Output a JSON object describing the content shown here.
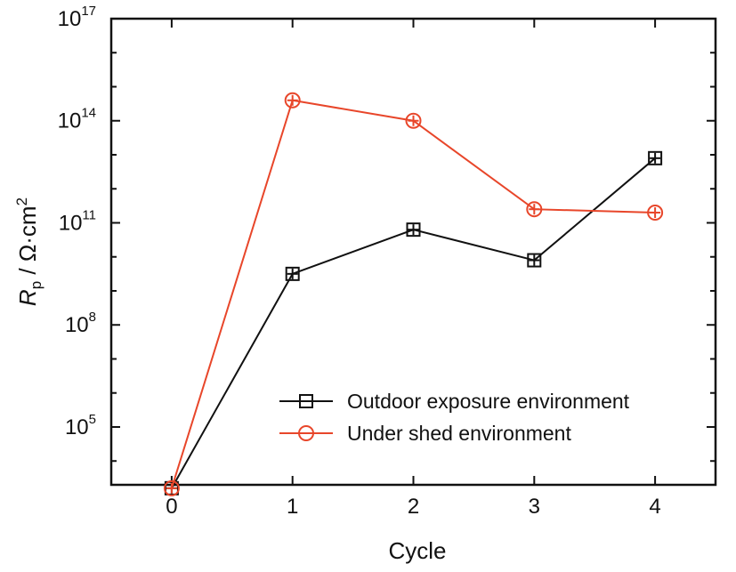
{
  "chart_data": {
    "type": "line",
    "title": "",
    "xlabel": "Cycle",
    "ylabel": {
      "base": "R",
      "sub": "p",
      "unit": " / Ω·cm",
      "unit_sup": "2"
    },
    "y_scale": "log",
    "xlim": [
      -0.5,
      4.5
    ],
    "ylim_log10": [
      3.3,
      17
    ],
    "categories": [
      0,
      1,
      2,
      3,
      4
    ],
    "x_ticks": [
      "0",
      "1",
      "2",
      "3",
      "4"
    ],
    "y_ticks": [
      {
        "base": "10",
        "exp": "5",
        "log10": 5
      },
      {
        "base": "10",
        "exp": "8",
        "log10": 8
      },
      {
        "base": "10",
        "exp": "11",
        "log10": 11
      },
      {
        "base": "10",
        "exp": "14",
        "log10": 14
      },
      {
        "base": "10",
        "exp": "17",
        "log10": 17
      }
    ],
    "series": [
      {
        "name": "Outdoor exposure environment",
        "color": "#111111",
        "marker": "square",
        "values_log10": [
          3.2,
          9.5,
          10.8,
          9.9,
          12.9
        ]
      },
      {
        "name": "Under shed environment",
        "color": "#e8462a",
        "marker": "circle",
        "values_log10": [
          3.2,
          14.6,
          14.0,
          11.4,
          11.3
        ]
      }
    ],
    "legend_position": "bottom-right",
    "grid": false
  }
}
